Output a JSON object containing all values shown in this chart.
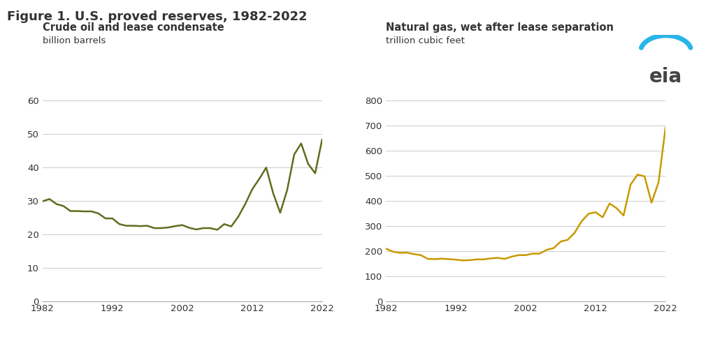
{
  "title": "Figure 1. U.S. proved reserves, 1982-2022",
  "title_fontsize": 13,
  "title_fontweight": "bold",
  "left_subtitle": "Crude oil and lease condensate",
  "left_unit": "billion barrels",
  "left_color": "#5c6e1e",
  "left_ylim": [
    0,
    60
  ],
  "left_yticks": [
    0,
    10,
    20,
    30,
    40,
    50,
    60
  ],
  "right_subtitle": "Natural gas, wet after lease separation",
  "right_unit": "trillion cubic feet",
  "right_color": "#c89a00",
  "right_ylim": [
    0,
    800
  ],
  "right_yticks": [
    0,
    100,
    200,
    300,
    400,
    500,
    600,
    700,
    800
  ],
  "years": [
    1982,
    1983,
    1984,
    1985,
    1986,
    1987,
    1988,
    1989,
    1990,
    1991,
    1992,
    1993,
    1994,
    1995,
    1996,
    1997,
    1998,
    1999,
    2000,
    2001,
    2002,
    2003,
    2004,
    2005,
    2006,
    2007,
    2008,
    2009,
    2010,
    2011,
    2012,
    2013,
    2014,
    2015,
    2016,
    2017,
    2018,
    2019,
    2020,
    2021,
    2022
  ],
  "crude_oil": [
    29.8,
    30.5,
    29.0,
    28.4,
    26.9,
    26.9,
    26.8,
    26.8,
    26.2,
    24.7,
    24.7,
    23.0,
    22.5,
    22.5,
    22.4,
    22.5,
    21.8,
    21.8,
    22.0,
    22.4,
    22.7,
    21.9,
    21.4,
    21.8,
    21.8,
    21.3,
    23.0,
    22.3,
    25.2,
    29.0,
    33.4,
    36.5,
    39.9,
    32.2,
    26.4,
    33.2,
    43.8,
    47.1,
    41.0,
    38.2,
    48.3
  ],
  "nat_gas": [
    209,
    197,
    192,
    193,
    187,
    183,
    168,
    167,
    169,
    167,
    165,
    162,
    163,
    166,
    166,
    170,
    172,
    168,
    177,
    183,
    183,
    189,
    189,
    204,
    211,
    237,
    244,
    272,
    318,
    348,
    354,
    334,
    389,
    370,
    341,
    464,
    504,
    497,
    392,
    473,
    691
  ],
  "xticks": [
    1982,
    1992,
    2002,
    2012,
    2022
  ],
  "background_color": "#ffffff",
  "grid_color": "#cccccc",
  "line_width": 1.8,
  "eia_logo_text": "eia",
  "eia_arc_color": "#29b5e8",
  "text_color": "#333333"
}
